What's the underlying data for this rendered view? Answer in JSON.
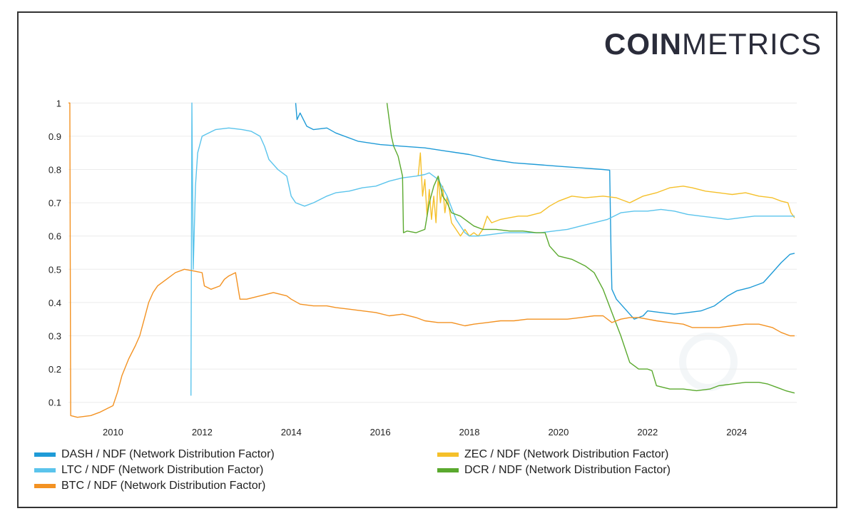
{
  "brand": {
    "bold": "COIN",
    "light": "METRICS"
  },
  "chart_data": {
    "type": "line",
    "title": "",
    "xlabel": "",
    "ylabel": "",
    "xlim": [
      2009.0,
      2025.35
    ],
    "ylim": [
      0.05,
      1.02
    ],
    "x_ticks": [
      "2010",
      "2012",
      "2014",
      "2016",
      "2018",
      "2020",
      "2022",
      "2024"
    ],
    "y_ticks": [
      "0.1",
      "0.2",
      "0.3",
      "0.4",
      "0.5",
      "0.6",
      "0.7",
      "0.8",
      "0.9",
      "1"
    ],
    "grid": "horizontal",
    "legend_position": "bottom",
    "series": [
      {
        "name": "DASH / NDF (Network Distribution Factor)",
        "color": "#1f9bd7",
        "points": [
          [
            2014.1,
            1.0
          ],
          [
            2014.13,
            0.95
          ],
          [
            2014.2,
            0.97
          ],
          [
            2014.35,
            0.93
          ],
          [
            2014.5,
            0.92
          ],
          [
            2014.8,
            0.925
          ],
          [
            2015.0,
            0.91
          ],
          [
            2015.5,
            0.885
          ],
          [
            2016.0,
            0.875
          ],
          [
            2016.5,
            0.87
          ],
          [
            2017.0,
            0.865
          ],
          [
            2017.5,
            0.855
          ],
          [
            2018.0,
            0.845
          ],
          [
            2018.5,
            0.83
          ],
          [
            2019.0,
            0.82
          ],
          [
            2019.5,
            0.815
          ],
          [
            2020.0,
            0.81
          ],
          [
            2020.5,
            0.805
          ],
          [
            2021.0,
            0.8
          ],
          [
            2021.15,
            0.798
          ],
          [
            2021.18,
            0.55
          ],
          [
            2021.2,
            0.44
          ],
          [
            2021.3,
            0.41
          ],
          [
            2021.5,
            0.38
          ],
          [
            2021.7,
            0.35
          ],
          [
            2021.9,
            0.36
          ],
          [
            2022.0,
            0.375
          ],
          [
            2022.3,
            0.37
          ],
          [
            2022.6,
            0.365
          ],
          [
            2022.9,
            0.37
          ],
          [
            2023.2,
            0.375
          ],
          [
            2023.5,
            0.39
          ],
          [
            2023.8,
            0.42
          ],
          [
            2024.0,
            0.435
          ],
          [
            2024.3,
            0.445
          ],
          [
            2024.6,
            0.46
          ],
          [
            2024.8,
            0.49
          ],
          [
            2025.0,
            0.52
          ],
          [
            2025.2,
            0.545
          ],
          [
            2025.3,
            0.548
          ]
        ]
      },
      {
        "name": "ZEC / NDF (Network Distribution Factor)",
        "color": "#f5c02a",
        "points": [
          [
            2016.85,
            0.78
          ],
          [
            2016.9,
            0.85
          ],
          [
            2016.95,
            0.72
          ],
          [
            2017.0,
            0.77
          ],
          [
            2017.05,
            0.66
          ],
          [
            2017.1,
            0.74
          ],
          [
            2017.15,
            0.65
          ],
          [
            2017.2,
            0.72
          ],
          [
            2017.25,
            0.64
          ],
          [
            2017.3,
            0.78
          ],
          [
            2017.35,
            0.7
          ],
          [
            2017.4,
            0.75
          ],
          [
            2017.45,
            0.67
          ],
          [
            2017.5,
            0.72
          ],
          [
            2017.6,
            0.64
          ],
          [
            2017.7,
            0.62
          ],
          [
            2017.8,
            0.6
          ],
          [
            2017.9,
            0.62
          ],
          [
            2018.0,
            0.6
          ],
          [
            2018.1,
            0.61
          ],
          [
            2018.2,
            0.6
          ],
          [
            2018.3,
            0.62
          ],
          [
            2018.4,
            0.66
          ],
          [
            2018.5,
            0.64
          ],
          [
            2018.7,
            0.65
          ],
          [
            2018.9,
            0.655
          ],
          [
            2019.1,
            0.66
          ],
          [
            2019.3,
            0.66
          ],
          [
            2019.6,
            0.67
          ],
          [
            2019.8,
            0.69
          ],
          [
            2020.0,
            0.705
          ],
          [
            2020.3,
            0.72
          ],
          [
            2020.6,
            0.715
          ],
          [
            2021.0,
            0.72
          ],
          [
            2021.3,
            0.715
          ],
          [
            2021.6,
            0.7
          ],
          [
            2021.9,
            0.72
          ],
          [
            2022.2,
            0.73
          ],
          [
            2022.5,
            0.745
          ],
          [
            2022.8,
            0.75
          ],
          [
            2023.0,
            0.745
          ],
          [
            2023.3,
            0.735
          ],
          [
            2023.6,
            0.73
          ],
          [
            2023.9,
            0.725
          ],
          [
            2024.2,
            0.73
          ],
          [
            2024.5,
            0.72
          ],
          [
            2024.8,
            0.715
          ],
          [
            2025.0,
            0.705
          ],
          [
            2025.15,
            0.7
          ],
          [
            2025.22,
            0.67
          ],
          [
            2025.3,
            0.655
          ]
        ]
      },
      {
        "name": "LTC / NDF (Network Distribution Factor)",
        "color": "#5bc4ec",
        "points": [
          [
            2011.75,
            0.12
          ],
          [
            2011.77,
            1.0
          ],
          [
            2011.8,
            0.5
          ],
          [
            2011.85,
            0.75
          ],
          [
            2011.9,
            0.85
          ],
          [
            2012.0,
            0.9
          ],
          [
            2012.3,
            0.92
          ],
          [
            2012.6,
            0.925
          ],
          [
            2012.9,
            0.92
          ],
          [
            2013.1,
            0.915
          ],
          [
            2013.3,
            0.9
          ],
          [
            2013.4,
            0.87
          ],
          [
            2013.5,
            0.83
          ],
          [
            2013.7,
            0.8
          ],
          [
            2013.9,
            0.78
          ],
          [
            2014.0,
            0.72
          ],
          [
            2014.1,
            0.7
          ],
          [
            2014.3,
            0.69
          ],
          [
            2014.5,
            0.7
          ],
          [
            2014.8,
            0.72
          ],
          [
            2015.0,
            0.73
          ],
          [
            2015.3,
            0.735
          ],
          [
            2015.6,
            0.745
          ],
          [
            2015.9,
            0.75
          ],
          [
            2016.2,
            0.765
          ],
          [
            2016.5,
            0.775
          ],
          [
            2016.8,
            0.78
          ],
          [
            2017.0,
            0.785
          ],
          [
            2017.1,
            0.79
          ],
          [
            2017.3,
            0.77
          ],
          [
            2017.5,
            0.72
          ],
          [
            2017.7,
            0.65
          ],
          [
            2017.9,
            0.61
          ],
          [
            2018.0,
            0.6
          ],
          [
            2018.2,
            0.6
          ],
          [
            2018.5,
            0.605
          ],
          [
            2018.8,
            0.61
          ],
          [
            2019.0,
            0.61
          ],
          [
            2019.3,
            0.61
          ],
          [
            2019.6,
            0.61
          ],
          [
            2019.9,
            0.615
          ],
          [
            2020.2,
            0.62
          ],
          [
            2020.5,
            0.63
          ],
          [
            2020.8,
            0.64
          ],
          [
            2021.1,
            0.65
          ],
          [
            2021.4,
            0.67
          ],
          [
            2021.7,
            0.675
          ],
          [
            2022.0,
            0.675
          ],
          [
            2022.3,
            0.68
          ],
          [
            2022.6,
            0.675
          ],
          [
            2022.9,
            0.665
          ],
          [
            2023.2,
            0.66
          ],
          [
            2023.5,
            0.655
          ],
          [
            2023.8,
            0.65
          ],
          [
            2024.1,
            0.655
          ],
          [
            2024.4,
            0.66
          ],
          [
            2024.7,
            0.66
          ],
          [
            2025.0,
            0.66
          ],
          [
            2025.3,
            0.66
          ]
        ]
      },
      {
        "name": "DCR / NDF (Network Distribution Factor)",
        "color": "#5aa92e",
        "points": [
          [
            2016.15,
            1.0
          ],
          [
            2016.2,
            0.95
          ],
          [
            2016.25,
            0.9
          ],
          [
            2016.3,
            0.87
          ],
          [
            2016.4,
            0.84
          ],
          [
            2016.5,
            0.78
          ],
          [
            2016.52,
            0.61
          ],
          [
            2016.6,
            0.615
          ],
          [
            2016.8,
            0.61
          ],
          [
            2017.0,
            0.62
          ],
          [
            2017.1,
            0.7
          ],
          [
            2017.2,
            0.75
          ],
          [
            2017.3,
            0.78
          ],
          [
            2017.4,
            0.72
          ],
          [
            2017.5,
            0.7
          ],
          [
            2017.6,
            0.67
          ],
          [
            2017.8,
            0.66
          ],
          [
            2018.0,
            0.64
          ],
          [
            2018.1,
            0.63
          ],
          [
            2018.3,
            0.62
          ],
          [
            2018.6,
            0.62
          ],
          [
            2018.9,
            0.615
          ],
          [
            2019.2,
            0.615
          ],
          [
            2019.5,
            0.61
          ],
          [
            2019.7,
            0.61
          ],
          [
            2019.8,
            0.57
          ],
          [
            2020.0,
            0.54
          ],
          [
            2020.3,
            0.53
          ],
          [
            2020.6,
            0.51
          ],
          [
            2020.8,
            0.49
          ],
          [
            2021.0,
            0.44
          ],
          [
            2021.2,
            0.37
          ],
          [
            2021.4,
            0.3
          ],
          [
            2021.6,
            0.22
          ],
          [
            2021.8,
            0.2
          ],
          [
            2022.0,
            0.2
          ],
          [
            2022.1,
            0.195
          ],
          [
            2022.2,
            0.15
          ],
          [
            2022.5,
            0.14
          ],
          [
            2022.8,
            0.14
          ],
          [
            2023.1,
            0.135
          ],
          [
            2023.4,
            0.14
          ],
          [
            2023.6,
            0.15
          ],
          [
            2023.9,
            0.155
          ],
          [
            2024.2,
            0.16
          ],
          [
            2024.5,
            0.16
          ],
          [
            2024.7,
            0.155
          ],
          [
            2024.9,
            0.145
          ],
          [
            2025.1,
            0.135
          ],
          [
            2025.3,
            0.128
          ]
        ]
      },
      {
        "name": "BTC / NDF (Network Distribution Factor)",
        "color": "#f39222",
        "points": [
          [
            2009.0,
            1.0
          ],
          [
            2009.03,
            1.0
          ],
          [
            2009.05,
            0.06
          ],
          [
            2009.2,
            0.055
          ],
          [
            2009.5,
            0.06
          ],
          [
            2009.7,
            0.07
          ],
          [
            2009.85,
            0.08
          ],
          [
            2010.0,
            0.09
          ],
          [
            2010.1,
            0.13
          ],
          [
            2010.2,
            0.18
          ],
          [
            2010.35,
            0.23
          ],
          [
            2010.5,
            0.27
          ],
          [
            2010.6,
            0.3
          ],
          [
            2010.7,
            0.35
          ],
          [
            2010.8,
            0.4
          ],
          [
            2010.9,
            0.43
          ],
          [
            2011.0,
            0.45
          ],
          [
            2011.2,
            0.47
          ],
          [
            2011.4,
            0.49
          ],
          [
            2011.6,
            0.5
          ],
          [
            2011.8,
            0.495
          ],
          [
            2012.0,
            0.49
          ],
          [
            2012.05,
            0.45
          ],
          [
            2012.2,
            0.44
          ],
          [
            2012.4,
            0.45
          ],
          [
            2012.5,
            0.47
          ],
          [
            2012.6,
            0.48
          ],
          [
            2012.75,
            0.49
          ],
          [
            2012.8,
            0.45
          ],
          [
            2012.85,
            0.41
          ],
          [
            2013.0,
            0.41
          ],
          [
            2013.3,
            0.42
          ],
          [
            2013.6,
            0.43
          ],
          [
            2013.9,
            0.42
          ],
          [
            2014.0,
            0.41
          ],
          [
            2014.2,
            0.395
          ],
          [
            2014.5,
            0.39
          ],
          [
            2014.8,
            0.39
          ],
          [
            2015.0,
            0.385
          ],
          [
            2015.3,
            0.38
          ],
          [
            2015.6,
            0.375
          ],
          [
            2015.9,
            0.37
          ],
          [
            2016.2,
            0.36
          ],
          [
            2016.5,
            0.365
          ],
          [
            2016.8,
            0.355
          ],
          [
            2017.0,
            0.345
          ],
          [
            2017.3,
            0.34
          ],
          [
            2017.6,
            0.34
          ],
          [
            2017.9,
            0.33
          ],
          [
            2018.1,
            0.335
          ],
          [
            2018.4,
            0.34
          ],
          [
            2018.7,
            0.345
          ],
          [
            2019.0,
            0.345
          ],
          [
            2019.3,
            0.35
          ],
          [
            2019.6,
            0.35
          ],
          [
            2019.9,
            0.35
          ],
          [
            2020.2,
            0.35
          ],
          [
            2020.5,
            0.355
          ],
          [
            2020.8,
            0.36
          ],
          [
            2021.0,
            0.36
          ],
          [
            2021.2,
            0.34
          ],
          [
            2021.4,
            0.35
          ],
          [
            2021.6,
            0.355
          ],
          [
            2021.8,
            0.355
          ],
          [
            2022.0,
            0.35
          ],
          [
            2022.2,
            0.345
          ],
          [
            2022.5,
            0.34
          ],
          [
            2022.8,
            0.335
          ],
          [
            2023.0,
            0.325
          ],
          [
            2023.3,
            0.325
          ],
          [
            2023.6,
            0.325
          ],
          [
            2023.9,
            0.33
          ],
          [
            2024.2,
            0.335
          ],
          [
            2024.5,
            0.335
          ],
          [
            2024.8,
            0.325
          ],
          [
            2025.0,
            0.31
          ],
          [
            2025.2,
            0.3
          ],
          [
            2025.3,
            0.3
          ]
        ]
      }
    ],
    "legend": [
      {
        "label": "DASH / NDF (Network Distribution Factor)",
        "color": "#1f9bd7"
      },
      {
        "label": "ZEC / NDF (Network Distribution Factor)",
        "color": "#f5c02a"
      },
      {
        "label": "LTC / NDF (Network Distribution Factor)",
        "color": "#5bc4ec"
      },
      {
        "label": "DCR / NDF (Network Distribution Factor)",
        "color": "#5aa92e"
      },
      {
        "label": "BTC / NDF (Network Distribution Factor)",
        "color": "#f39222"
      }
    ]
  }
}
